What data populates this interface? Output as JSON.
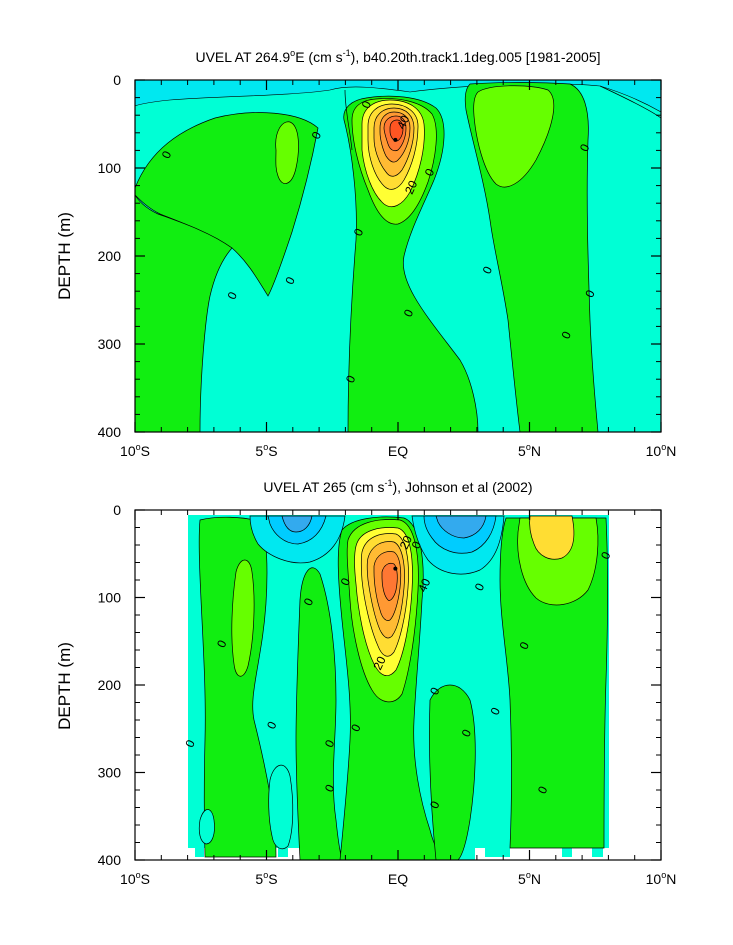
{
  "chart_data": [
    {
      "type": "contour",
      "title_parts": [
        "UVEL AT 264.9",
        "o",
        "E (cm s",
        "-1",
        "), b40.20th.track1.1deg.005 [1981-2005]"
      ],
      "xlabel": "",
      "ylabel": "DEPTH (m)",
      "x_ticks": [
        {
          "value": -10,
          "num": "10",
          "hemi": "S"
        },
        {
          "value": -5,
          "num": "5",
          "hemi": "S"
        },
        {
          "value": 0,
          "num": "EQ",
          "hemi": ""
        },
        {
          "value": 5,
          "num": "5",
          "hemi": "N"
        },
        {
          "value": 10,
          "num": "10",
          "hemi": "N"
        }
      ],
      "y_ticks": [
        0,
        100,
        200,
        300,
        400
      ],
      "xlim": [
        -10,
        10
      ],
      "ylim": [
        400,
        0
      ],
      "data_xlim": [
        -10,
        10
      ],
      "contour_labels": [
        {
          "text": "0",
          "x": -8.8,
          "y": 85
        },
        {
          "text": "0",
          "x": -3.1,
          "y": 63
        },
        {
          "text": "0",
          "x": -1.2,
          "y": 28
        },
        {
          "text": "40",
          "x": 0.2,
          "y": 48
        },
        {
          "text": "20",
          "x": 0.5,
          "y": 122
        },
        {
          "text": "0",
          "x": 1.2,
          "y": 105
        },
        {
          "text": "0",
          "x": -1.5,
          "y": 173
        },
        {
          "text": "0",
          "x": -6.3,
          "y": 245
        },
        {
          "text": "0",
          "x": -4.1,
          "y": 228
        },
        {
          "text": "0",
          "x": 0.4,
          "y": 265
        },
        {
          "text": "0",
          "x": 3.4,
          "y": 216
        },
        {
          "text": "0",
          "x": -1.8,
          "y": 340
        },
        {
          "text": "0",
          "x": 7.1,
          "y": 77
        },
        {
          "text": "0",
          "x": 7.3,
          "y": 243
        },
        {
          "text": "0",
          "x": 6.4,
          "y": 290
        }
      ],
      "max_value_location": {
        "x": -0.1,
        "y": 68
      }
    },
    {
      "type": "contour",
      "title_parts": [
        "UVEL AT 265 (cm s",
        "-1",
        "), Johnson et al (2002)"
      ],
      "xlabel": "",
      "ylabel": "DEPTH (m)",
      "x_ticks": [
        {
          "value": -10,
          "num": "10",
          "hemi": "S"
        },
        {
          "value": -5,
          "num": "5",
          "hemi": "S"
        },
        {
          "value": 0,
          "num": "EQ",
          "hemi": ""
        },
        {
          "value": 5,
          "num": "5",
          "hemi": "N"
        },
        {
          "value": 10,
          "num": "10",
          "hemi": "N"
        }
      ],
      "y_ticks": [
        0,
        100,
        200,
        300,
        400
      ],
      "xlim": [
        -10,
        10
      ],
      "ylim": [
        400,
        0
      ],
      "data_xlim": [
        -8,
        8
      ],
      "contour_labels": [
        {
          "text": "0",
          "x": -6.7,
          "y": 153
        },
        {
          "text": "0",
          "x": -7.9,
          "y": 267
        },
        {
          "text": "0",
          "x": -3.4,
          "y": 105
        },
        {
          "text": "0",
          "x": -2.0,
          "y": 82
        },
        {
          "text": "0",
          "x": -4.8,
          "y": 246
        },
        {
          "text": "0",
          "x": -2.6,
          "y": 267
        },
        {
          "text": "0",
          "x": -2.6,
          "y": 318
        },
        {
          "text": "0",
          "x": -1.6,
          "y": 249
        },
        {
          "text": "20",
          "x": 0.3,
          "y": 37
        },
        {
          "text": "0",
          "x": 0.7,
          "y": 40
        },
        {
          "text": "40",
          "x": 1.0,
          "y": 86
        },
        {
          "text": "20",
          "x": -0.7,
          "y": 175
        },
        {
          "text": "0",
          "x": 1.4,
          "y": 207
        },
        {
          "text": "0",
          "x": 3.1,
          "y": 88
        },
        {
          "text": "0",
          "x": 4.8,
          "y": 155
        },
        {
          "text": "0",
          "x": 3.7,
          "y": 230
        },
        {
          "text": "0",
          "x": 2.6,
          "y": 255
        },
        {
          "text": "0",
          "x": 1.4,
          "y": 337
        },
        {
          "text": "0",
          "x": 5.5,
          "y": 320
        },
        {
          "text": "0",
          "x": 7.9,
          "y": 52
        }
      ],
      "max_value_location": {
        "x": -0.1,
        "y": 67
      }
    }
  ]
}
